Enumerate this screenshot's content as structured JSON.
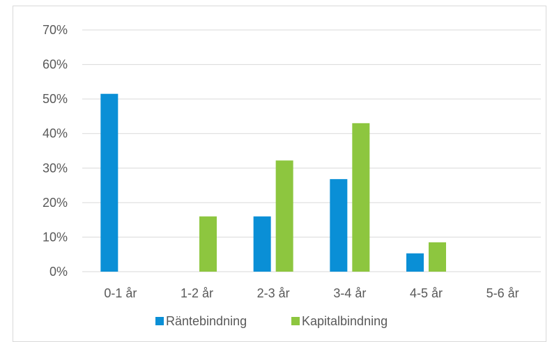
{
  "chart_data": {
    "type": "bar",
    "categories": [
      "0-1 år",
      "1-2 år",
      "2-3 år",
      "3-4 år",
      "4-5 år",
      "5-6 år"
    ],
    "series": [
      {
        "name": "Räntebindning",
        "values": [
          51.5,
          0,
          16,
          26.8,
          5.3,
          0
        ],
        "color": "#0a8fd6"
      },
      {
        "name": "Kapitalbindning",
        "values": [
          0,
          16,
          32.2,
          43,
          8.5,
          0
        ],
        "color": "#8dc63f"
      }
    ],
    "y_ticks": [
      "0%",
      "10%",
      "20%",
      "30%",
      "40%",
      "50%",
      "60%",
      "70%"
    ],
    "ylim": [
      0,
      70
    ],
    "grid": true,
    "gridline_color": "#d9d9d9",
    "legend_position": "bottom",
    "title": "",
    "xlabel": "",
    "ylabel": ""
  }
}
